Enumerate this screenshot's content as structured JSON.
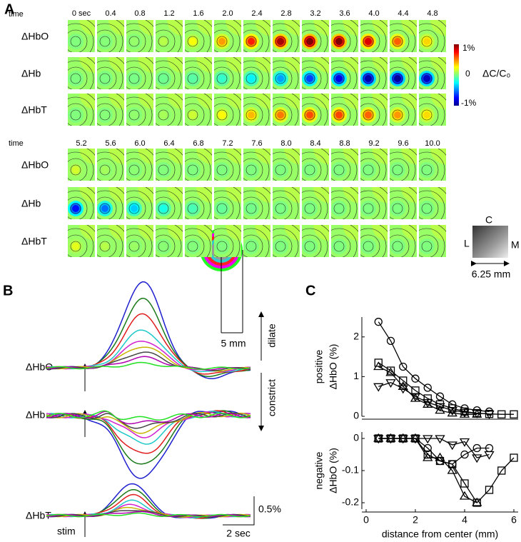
{
  "panel_a": {
    "label": "A",
    "time_label": [
      "time",
      "time"
    ],
    "times": [
      [
        "0 sec",
        "0.4",
        "0.8",
        "1.2",
        "1.6",
        "2.0",
        "2.4",
        "2.8",
        "3.2",
        "3.6",
        "4.0",
        "4.4",
        "4.8"
      ],
      [
        "5.2",
        "5.6",
        "6.0",
        "6.4",
        "6.8",
        "7.2",
        "7.6",
        "8.0",
        "8.4",
        "8.8",
        "9.2",
        "9.6",
        "10.0"
      ]
    ],
    "rows": [
      [
        "ΔHbO",
        "ΔHb",
        "ΔHbT"
      ],
      [
        "ΔHbO",
        "ΔHb",
        "ΔHbT"
      ]
    ],
    "colorbar_ticks": [
      "1%",
      "0",
      "-1%"
    ],
    "colorbar_label": "ΔC/C₀",
    "inset": {
      "labels": [
        "C",
        "L",
        "M"
      ],
      "scale": "6.25 mm"
    }
  },
  "panel_b": {
    "label": "B",
    "traces": [
      "ΔHbO",
      "ΔHb",
      "ΔHbT"
    ],
    "ring_scale": "5 mm",
    "dilate": "dilate",
    "constrict": "constrict",
    "amp_scale": "0.5%",
    "time_scale": "2 sec",
    "stim": "stim"
  },
  "panel_c": {
    "label": "C"
  },
  "chart_data": [
    {
      "type": "line",
      "ylabel": [
        "positive",
        "ΔHbO (%)"
      ],
      "xlim": [
        0,
        6
      ],
      "ylim": [
        0,
        2.5
      ],
      "yticks": [
        0,
        1,
        2
      ],
      "series": [
        {
          "marker": "circle",
          "color": "#000000",
          "x": [
            0.5,
            1,
            1.5,
            2,
            2.5,
            3,
            3.5,
            4,
            4.5,
            5
          ],
          "values": [
            2.38,
            1.9,
            1.25,
            0.95,
            0.72,
            0.5,
            0.3,
            0.2,
            0.15,
            0.12
          ]
        },
        {
          "marker": "square",
          "color": "#000000",
          "x": [
            0.5,
            1,
            1.5,
            2,
            2.5,
            3,
            3.5,
            4,
            4.5,
            5,
            5.5,
            6
          ],
          "values": [
            1.35,
            1.15,
            0.9,
            0.65,
            0.45,
            0.3,
            0.2,
            0.12,
            0.08,
            0.06,
            0.05,
            0.05
          ]
        },
        {
          "marker": "triangle-up",
          "color": "#000000",
          "x": [
            0.5,
            1,
            1.5,
            2,
            2.5,
            3,
            3.5,
            4,
            4.5
          ],
          "values": [
            1.25,
            1.1,
            0.75,
            0.45,
            0.3,
            0.15,
            0.08,
            0.05,
            0.05
          ]
        },
        {
          "marker": "triangle-down",
          "color": "#000000",
          "x": [
            0.5,
            1,
            1.5,
            2,
            2.5,
            3,
            3.5,
            4,
            4.5,
            5
          ],
          "values": [
            0.75,
            0.85,
            0.7,
            0.5,
            0.35,
            0.25,
            0.15,
            0.1,
            0.08,
            0.06
          ]
        }
      ]
    },
    {
      "type": "line",
      "ylabel": [
        "negative",
        "ΔHbO (%)"
      ],
      "xlabel": "distance from center (mm)",
      "xlim": [
        0,
        6
      ],
      "ylim": [
        -0.22,
        0.02
      ],
      "xticks": [
        0,
        2,
        4,
        6
      ],
      "yticks": [
        0,
        -0.1,
        -0.2
      ],
      "series": [
        {
          "marker": "circle",
          "color": "#000000",
          "x": [
            0.5,
            1,
            1.5,
            2,
            2.5,
            3,
            3.5,
            4,
            4.5,
            5
          ],
          "values": [
            0,
            0,
            0,
            0,
            -0.03,
            -0.07,
            -0.08,
            -0.05,
            -0.03,
            -0.03
          ]
        },
        {
          "marker": "square",
          "color": "#000000",
          "x": [
            0.5,
            1,
            1.5,
            2,
            2.5,
            3,
            3.5,
            4,
            4.5,
            5,
            5.5,
            6
          ],
          "values": [
            0,
            0,
            0,
            0,
            -0.05,
            -0.07,
            -0.08,
            -0.14,
            -0.2,
            -0.16,
            -0.1,
            -0.06
          ]
        },
        {
          "marker": "triangle-up",
          "color": "#000000",
          "x": [
            0.5,
            1,
            1.5,
            2,
            2.5,
            3,
            3.5,
            4,
            4.5
          ],
          "values": [
            0,
            0,
            0,
            0,
            -0.06,
            -0.06,
            -0.1,
            -0.18,
            -0.2
          ]
        },
        {
          "marker": "triangle-down",
          "color": "#000000",
          "x": [
            0.5,
            1,
            1.5,
            2,
            2.5,
            3,
            3.5,
            4,
            4.5,
            5
          ],
          "values": [
            0,
            0,
            0,
            0,
            0,
            0,
            -0.02,
            -0.01,
            -0.06,
            -0.05
          ]
        }
      ]
    }
  ]
}
